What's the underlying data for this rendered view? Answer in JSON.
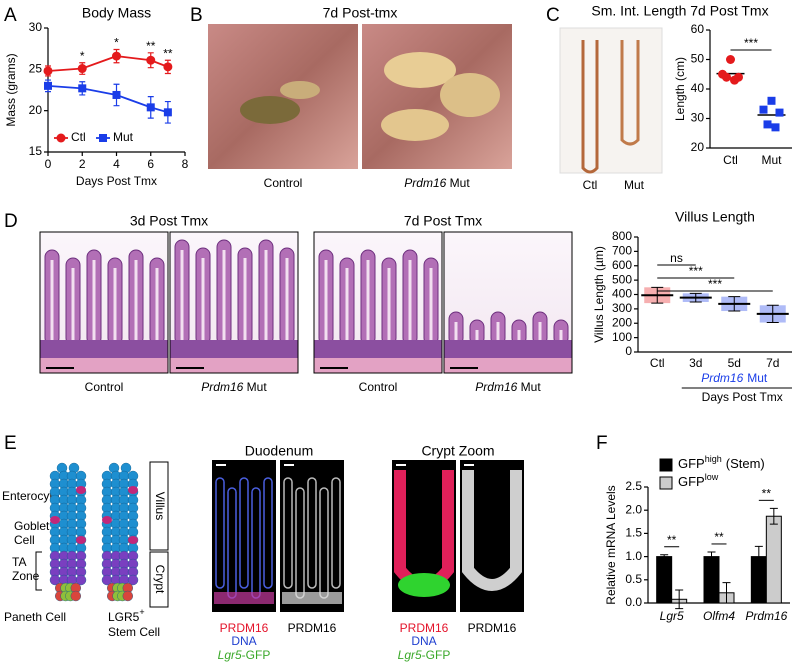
{
  "panel_labels": [
    "A",
    "B",
    "C",
    "D",
    "E",
    "F"
  ],
  "chart_data": [
    {
      "type": "line",
      "title": "Body Mass",
      "xlabel": "Days Post Tmx",
      "ylabel": "Mass (grams)",
      "x": [
        0,
        2,
        4,
        6,
        7
      ],
      "xlim": [
        0,
        8
      ],
      "xticks": [
        0,
        2,
        4,
        6,
        8
      ],
      "ylim": [
        15,
        30
      ],
      "yticks": [
        15,
        20,
        25,
        30
      ],
      "legend": "lower left",
      "series": [
        {
          "name": "Ctl",
          "color": "#e41a1c",
          "marker": "circle",
          "values": [
            24.8,
            25.1,
            26.6,
            26.1,
            25.3
          ],
          "errors": [
            0.6,
            0.7,
            0.8,
            0.9,
            0.8
          ]
        },
        {
          "name": "Mut",
          "color": "#1a3de8",
          "marker": "square",
          "values": [
            23.0,
            22.7,
            21.9,
            20.4,
            19.8
          ],
          "errors": [
            0.7,
            0.8,
            1.3,
            1.3,
            1.3
          ]
        }
      ],
      "significance": [
        null,
        "*",
        "*",
        "**",
        "**"
      ]
    },
    {
      "type": "scatter",
      "title": "Sm. Int. Length 7d Post Tmx",
      "ylabel": "Length (cm)",
      "categories": [
        "Ctl",
        "Mut"
      ],
      "ylim": [
        20,
        60
      ],
      "yticks": [
        20,
        30,
        40,
        50,
        60
      ],
      "groups": [
        {
          "color": "#e41a1c",
          "marker": "circle",
          "values": [
            50,
            45,
            44,
            44,
            43
          ],
          "mean": 45.2
        },
        {
          "color": "#1a3de8",
          "marker": "square",
          "values": [
            36,
            33,
            32,
            28,
            27
          ],
          "mean": 31.2
        }
      ],
      "significance": "***"
    },
    {
      "type": "dotplot",
      "title": "Villus Length",
      "ylabel": "Villus Length (µm)",
      "xlabel": "Days Post Tmx",
      "categories": [
        "Ctl",
        "3d",
        "5d",
        "7d"
      ],
      "group_label": {
        "gene": "Prdm16",
        "text": "Mut"
      },
      "ylim": [
        0,
        800
      ],
      "yticks": [
        0,
        100,
        200,
        300,
        400,
        500,
        600,
        700,
        800
      ],
      "colors": [
        "#e41a1c",
        "#1a3de8",
        "#1a3de8",
        "#1a3de8"
      ],
      "values": [
        395,
        378,
        335,
        265
      ],
      "errors": [
        55,
        30,
        50,
        60
      ],
      "significance": [
        "ns",
        "***",
        "***"
      ]
    },
    {
      "type": "bar",
      "ylabel": "Relative mRNA Levels",
      "categories": [
        "Lgr5",
        "Olfm4",
        "Prdm16"
      ],
      "ylim": [
        0,
        2.5
      ],
      "yticks": [
        {
          "value": 0,
          "label": "0.0"
        },
        0.5,
        {
          "value": 1,
          "label": "1.0"
        },
        1.5,
        {
          "value": 2,
          "label": "2.0"
        },
        2.5
      ],
      "series": [
        {
          "name": "GFP",
          "superscript": "high",
          "suffix": "(Stem)",
          "color": "#000000",
          "values": [
            1.0,
            1.0,
            1.0
          ],
          "errors": [
            0.04,
            0.1,
            0.22
          ]
        },
        {
          "name": "GFP",
          "superscript": "low",
          "color": "#cccccc",
          "values": [
            0.08,
            0.22,
            1.87
          ],
          "errors": [
            0.2,
            0.22,
            0.17
          ]
        }
      ],
      "significance": [
        "**",
        "**",
        "**"
      ]
    }
  ],
  "photos_b": {
    "title": "7d Post-tmx",
    "captions": [
      {
        "text": "Control"
      },
      {
        "gene": "Prdm16",
        "text": "Mut"
      }
    ]
  },
  "photo_c": {
    "captions": [
      "Ctl",
      "Mut"
    ]
  },
  "histology_d": {
    "headers": [
      "3d Post Tmx",
      "7d Post Tmx"
    ],
    "control": "Control",
    "mutant": {
      "gene": "Prdm16",
      "text": "Mut"
    }
  },
  "panel_e": {
    "diagram": {
      "enterocyte": "Enterocyte",
      "goblet": [
        "Goblet",
        "Cell"
      ],
      "ta_zone": [
        "TA",
        "Zone"
      ],
      "paneth": "Paneth Cell",
      "stem": {
        "text": "LGR5",
        "sup": "+",
        "line2": "Stem Cell"
      },
      "villus": "Villus",
      "crypt": "Crypt"
    },
    "headers": [
      "Duodenum",
      "Crypt Zoom"
    ],
    "stains": [
      "PRDM16",
      "DNA",
      {
        "gene": "Lgr5",
        "text": "-GFP"
      }
    ],
    "grayscale": "PRDM16"
  }
}
